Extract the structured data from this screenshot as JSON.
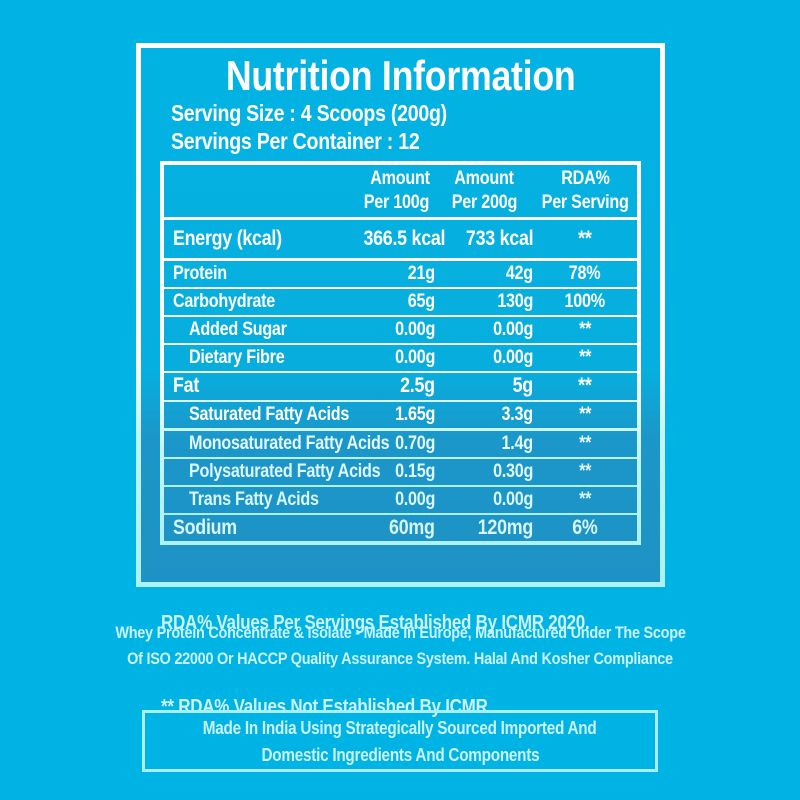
{
  "colors": {
    "background": "#00b3e5",
    "dark_zone": "#1e92c4",
    "border_white": "#ffffff",
    "border_aqua": "#aef1f7",
    "text_white": "#ffffff",
    "text_pale_aqua": "#c9f3f9"
  },
  "label": {
    "title": "Nutrition Information",
    "serving_size": "Serving Size : 4 Scoops (200g)",
    "servings_per_container": "Servings Per Container : 12"
  },
  "table": {
    "header": {
      "col_per100_line1": "Amount",
      "col_per100_line2": "Per 100g",
      "col_per200_line1": "Amount",
      "col_per200_line2": "Per 200g",
      "col_rda_line1": "RDA%",
      "col_rda_line2": "Per Serving"
    },
    "rows": [
      {
        "label": "Energy (kcal)",
        "per100": "366.5 kcal",
        "per200": "733 kcal",
        "rda": "**"
      },
      {
        "label": "Protein",
        "per100": "21g",
        "per200": "42g",
        "rda": "78%"
      },
      {
        "label": "Carbohydrate",
        "per100": "65g",
        "per200": "130g",
        "rda": "100%"
      },
      {
        "label": "Added Sugar",
        "per100": "0.00g",
        "per200": "0.00g",
        "rda": "**"
      },
      {
        "label": "Dietary Fibre",
        "per100": "0.00g",
        "per200": "0.00g",
        "rda": "**"
      },
      {
        "label": "Fat",
        "per100": "2.5g",
        "per200": "5g",
        "rda": "**"
      },
      {
        "label": "Saturated Fatty Acids",
        "per100": "1.65g",
        "per200": "3.3g",
        "rda": "**"
      },
      {
        "label": "Monosaturated Fatty Acids",
        "per100": "0.70g",
        "per200": "1.4g",
        "rda": "**"
      },
      {
        "label": "Polysaturated Fatty Acids",
        "per100": "0.15g",
        "per200": "0.30g",
        "rda": "**"
      },
      {
        "label": "Trans Fatty Acids",
        "per100": "0.00g",
        "per200": "0.00g",
        "rda": "**"
      },
      {
        "label": "Sodium",
        "per100": "60mg",
        "per200": "120mg",
        "rda": "6%"
      }
    ],
    "footnote_line1": "RDA%  Values Per Servings Established By ICMR 2020.",
    "footnote_line2": "** RDA%  Values Not Established By ICMR."
  },
  "description": {
    "line1": "Whey Protein Concentrate & Isolate - Made In Europe, Manufactured Under The Scope",
    "line2": "Of ISO 22000 Or HACCP Quality Assurance System. Halal And Kosher Compliance"
  },
  "made_in_box": {
    "line1": "Made In India Using Strategically Sourced Imported And",
    "line2": "Domestic Ingredients And Components"
  }
}
